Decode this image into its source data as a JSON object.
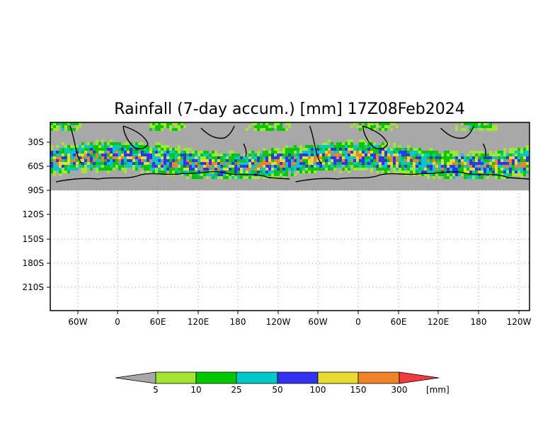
{
  "title": "Rainfall (7-day accum.) [mm] 17Z08Feb2024",
  "map": {
    "lat_ticks": [
      "30S",
      "60S",
      "90S",
      "120S",
      "150S",
      "180S",
      "210S"
    ],
    "lon_ticks": [
      "60W",
      "0",
      "60E",
      "120E",
      "180",
      "120W",
      "60W",
      "0",
      "60E",
      "120E",
      "180",
      "120W"
    ],
    "gridlines": true,
    "no_data_color": "#a8a8a8",
    "ocean_background": "#ffffff"
  },
  "colorbar": {
    "unit_label": "[mm]",
    "labels": [
      "5",
      "10",
      "25",
      "50",
      "100",
      "150",
      "300"
    ],
    "under_color": "#a8a8a8",
    "over_color": "#f03c3c",
    "colors": [
      "#a0e632",
      "#00c800",
      "#00c8c8",
      "#3232f0",
      "#e6dc32",
      "#f08228"
    ]
  }
}
